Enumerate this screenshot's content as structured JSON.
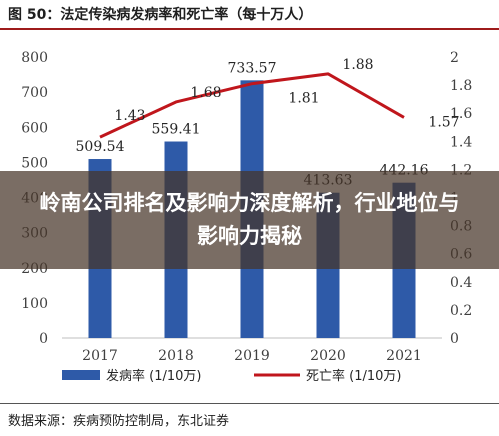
{
  "header": {
    "title": "图 50：法定传染病发病率和死亡率（每十万人）"
  },
  "footer": {
    "source": "数据来源：疾病预防控制局，东北证券"
  },
  "overlay": {
    "text": "岭南公司排名及影响力深度解析，行业地位与影响力揭秘"
  },
  "colors": {
    "bar": "#2e5aa8",
    "line": "#c0161c",
    "title_rule": "#9e1b1b"
  },
  "chart_data": {
    "type": "bar",
    "title": "",
    "categories": [
      "2017",
      "2018",
      "2019",
      "2020",
      "2021"
    ],
    "series": [
      {
        "name": "发病率 (1/10万)",
        "type": "bar",
        "axis": "left",
        "values": [
          509.54,
          559.41,
          733.57,
          413.63,
          442.16
        ],
        "labels": [
          "509.54",
          "559.41",
          "733.57",
          "413.63",
          "442.16"
        ]
      },
      {
        "name": "死亡率 (1/10万)",
        "type": "line",
        "axis": "right",
        "values": [
          1.43,
          1.68,
          1.81,
          1.88,
          1.57
        ],
        "labels": [
          "1.43",
          "1.68",
          "1.81",
          "1.88",
          "1.57"
        ]
      }
    ],
    "ylim": [
      0,
      800
    ],
    "y_ticks": [
      "0",
      "100",
      "200",
      "300",
      "400",
      "500",
      "600",
      "700",
      "800"
    ],
    "y2lim": [
      0,
      2
    ],
    "y2_ticks": [
      "0",
      "0.2",
      "0.4",
      "0.6",
      "0.8",
      "1",
      "1.2",
      "1.4",
      "1.6",
      "1.8",
      "2"
    ],
    "legend_position": "bottom",
    "grid": false
  }
}
